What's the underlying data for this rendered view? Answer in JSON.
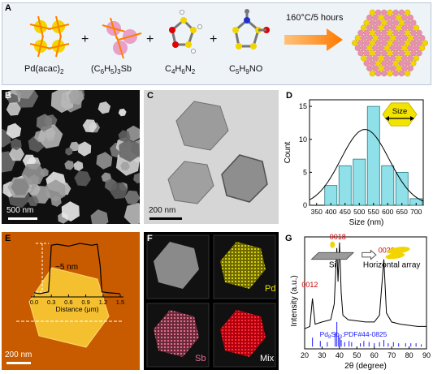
{
  "panelA": {
    "letter": "A",
    "reagents": [
      "Pd(acac)",
      "(C",
      "H",
      ")",
      "Sb",
      "C",
      "H",
      "N",
      "C",
      "H",
      "NO"
    ],
    "reagent_pd": {
      "base": "Pd(acac)",
      "sub": "2"
    },
    "reagent_sb": {
      "p1": "(C",
      "s1": "6",
      "p2": "H",
      "s2": "5",
      "p3": ")",
      "s3": "3",
      "p4": "Sb"
    },
    "reagent_c4": {
      "p1": "C",
      "s1": "4",
      "p2": "H",
      "s2": "6",
      "p3": "N",
      "s3": "2"
    },
    "reagent_c5": {
      "p1": "C",
      "s1": "5",
      "p2": "H",
      "s2": "9",
      "p3": "NO"
    },
    "condition": "160°C/5 hours",
    "plus": "+"
  },
  "panelB": {
    "letter": "B",
    "scale": "500 nm"
  },
  "panelC": {
    "letter": "C",
    "scale": "200 nm"
  },
  "panelD": {
    "letter": "D",
    "inset_label": "Size"
  },
  "panelE": {
    "letter": "E",
    "scale": "200 nm",
    "height_label": "~5 nm"
  },
  "panelF": {
    "letter": "F",
    "labels": [
      "Pd",
      "Sb",
      "Mix"
    ]
  },
  "panelG": {
    "letter": "G",
    "si_label": "Si",
    "array_label": "Horizontal array",
    "peak_labels": [
      "0012",
      "0018",
      "0030"
    ],
    "ref_label": "Pd",
    "ref_sub1": "8",
    "ref_mid": "Sb",
    "ref_sub2": "3",
    "ref_tail": ":PDF#44-0825"
  },
  "chart_data": [
    {
      "type": "bar",
      "panel": "D",
      "title": "",
      "xlabel": "Size (nm)",
      "ylabel": "Count",
      "x": [
        400,
        450,
        500,
        550,
        600,
        650,
        700
      ],
      "values": [
        3,
        6,
        7,
        15,
        6,
        5,
        1
      ],
      "xlim": [
        325,
        725
      ],
      "ylim": [
        0,
        16
      ],
      "xticks": [
        350,
        400,
        450,
        500,
        550,
        600,
        650,
        700
      ],
      "yticks": [
        0,
        5,
        10,
        15
      ],
      "fit": {
        "type": "gaussian",
        "center": 520,
        "sigma": 85,
        "peak": 11.5
      }
    },
    {
      "type": "line",
      "panel": "E",
      "xlabel": "Distance (μm)",
      "xticks": [
        0.0,
        0.3,
        0.6,
        0.9,
        1.2,
        1.5
      ],
      "x": [
        0.0,
        0.1,
        0.25,
        0.28,
        0.3,
        0.4,
        0.6,
        0.8,
        1.0,
        1.1,
        1.15,
        1.18,
        1.3,
        1.5
      ],
      "y": [
        0.1,
        0.0,
        0.2,
        3.0,
        5.2,
        5.3,
        5.1,
        5.4,
        5.2,
        5.3,
        3.0,
        0.2,
        0.1,
        0.0
      ]
    },
    {
      "type": "line",
      "panel": "G",
      "xlabel": "2θ (degree)",
      "ylabel": "Intensity (a.u.)",
      "xlim": [
        20,
        90
      ],
      "xticks": [
        20,
        30,
        40,
        50,
        60,
        70,
        80,
        90
      ],
      "x": [
        20,
        23,
        24.5,
        26,
        30,
        35,
        37,
        38.5,
        39.2,
        40,
        41,
        42,
        45,
        50,
        55,
        60,
        63,
        65.5,
        67,
        70,
        75,
        80,
        85,
        90
      ],
      "y": [
        0.18,
        0.2,
        0.45,
        0.22,
        0.24,
        0.26,
        0.4,
        0.9,
        0.6,
        0.95,
        0.5,
        0.3,
        0.26,
        0.25,
        0.24,
        0.24,
        0.3,
        0.8,
        0.32,
        0.24,
        0.22,
        0.21,
        0.2,
        0.2
      ],
      "ref_peaks": [
        24.5,
        29,
        33,
        37.5,
        38.5,
        39.5,
        40.2,
        41,
        43,
        45.5,
        47,
        52,
        54,
        57,
        60,
        63,
        65.5,
        68,
        71,
        74,
        78,
        81,
        84,
        87
      ]
    }
  ],
  "colors": {
    "accent": "#cc0000",
    "hist_bar": "#8fe0e8",
    "fit_line": "#000000",
    "ref_blue": "#1a1aff",
    "afm_bg": "#c85a00"
  }
}
